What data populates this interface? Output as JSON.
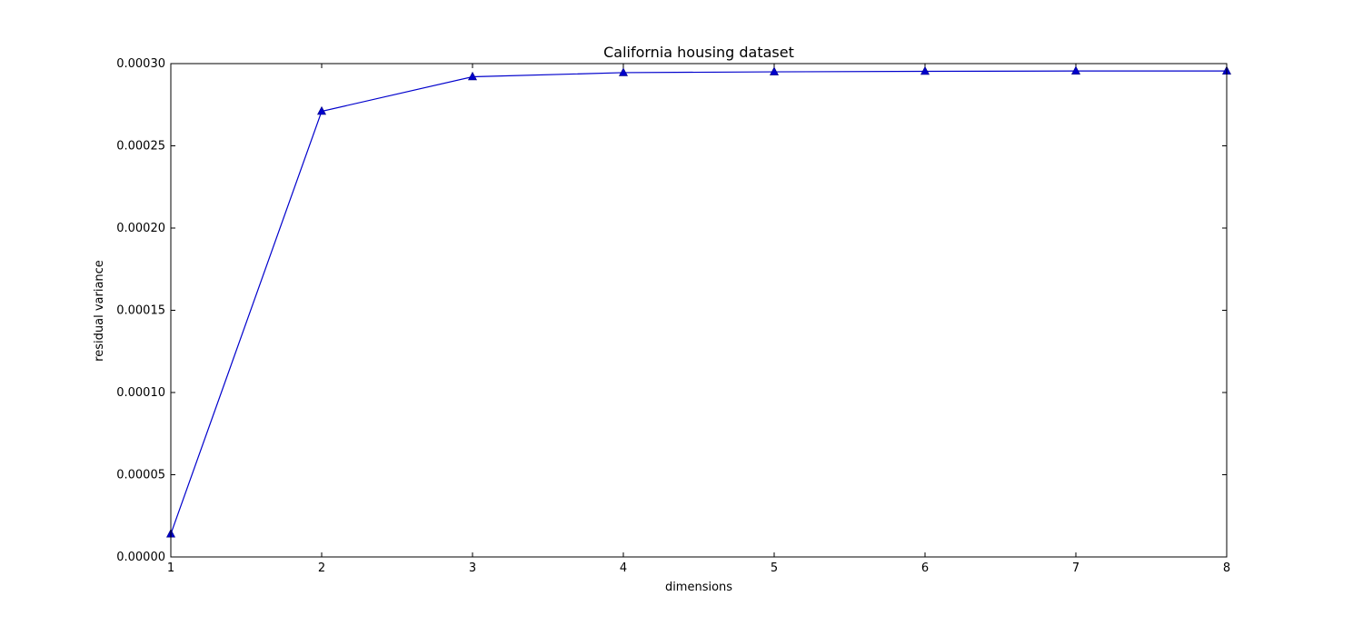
{
  "chart_data": {
    "type": "line",
    "title": "California housing dataset",
    "xlabel": "dimensions",
    "ylabel": "residual variance",
    "xlim": [
      1,
      8
    ],
    "ylim": [
      0,
      0.0003
    ],
    "x_ticks": [
      1,
      2,
      3,
      4,
      5,
      6,
      7,
      8
    ],
    "x_tick_labels": [
      "1",
      "2",
      "3",
      "4",
      "5",
      "6",
      "7",
      "8"
    ],
    "y_ticks": [
      0,
      5e-05,
      0.0001,
      0.00015,
      0.0002,
      0.00025,
      0.0003
    ],
    "y_tick_labels": [
      "0.00000",
      "0.00005",
      "0.00010",
      "0.00015",
      "0.00020",
      "0.00025",
      "0.00030"
    ],
    "grid": false,
    "series": [
      {
        "color": "#0000cc",
        "marker": "triangle-up",
        "x": [
          1,
          2,
          3,
          4,
          5,
          6,
          7,
          8
        ],
        "y": [
          1.4e-05,
          0.000271,
          0.000292,
          0.0002945,
          0.000295,
          0.0002953,
          0.0002955,
          0.0002955
        ]
      }
    ]
  }
}
